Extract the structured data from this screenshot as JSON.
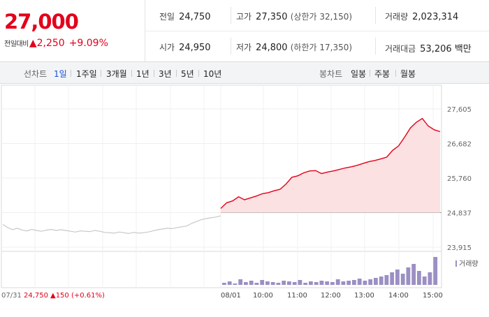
{
  "summary": {
    "price": "27,000",
    "change_label": "전일대비",
    "change_arrow": "▲",
    "change_amount": "2,250",
    "change_percent": "+9.09%",
    "stats": {
      "prev_label": "전일",
      "prev_value": "24,750",
      "high_label": "고가",
      "high_value": "27,350",
      "upper_limit_label": "(상한가 ",
      "upper_limit_value": "32,150",
      "upper_limit_close": ")",
      "volume_label": "거래량",
      "volume_value": "2,023,314",
      "open_label": "시가",
      "open_value": "24,950",
      "low_label": "저가",
      "low_value": "24,800",
      "lower_limit_label": "(하한가 ",
      "lower_limit_value": "17,350",
      "lower_limit_close": ")",
      "amount_label": "거래대금",
      "amount_value": "53,206",
      "amount_unit": "백만"
    }
  },
  "tabs": {
    "line_title": "선차트",
    "line_tabs": [
      "1일",
      "1주일",
      "3개월",
      "1년",
      "3년",
      "5년",
      "10년"
    ],
    "active": "1일",
    "candle_title": "봉차트",
    "candle_tabs": [
      "일봉",
      "주봉",
      "월봉"
    ]
  },
  "colors": {
    "up": "#e3001b",
    "accent": "#1a4fd6",
    "prev_line": "#c8c8c8",
    "volume": "#9b8fc4",
    "fill": "#fbe1e1"
  },
  "chart_data": {
    "type": "line",
    "y_ticks": [
      "27,605",
      "26,682",
      "25,760",
      "24,837",
      "23,915"
    ],
    "ylim": [
      23915,
      27605
    ],
    "x_ticks": [
      "08/01",
      "10:00",
      "11:00",
      "12:00",
      "13:00",
      "14:00",
      "15:00"
    ],
    "prev_day_label": "07/31",
    "prev_day_close": "24,750",
    "prev_day_change": "▲150 (+0.61%)",
    "volume_legend": "거래량",
    "reference_line": 24837,
    "prev_day_series": [
      24520,
      24440,
      24380,
      24420,
      24370,
      24350,
      24390,
      24360,
      24340,
      24370,
      24390,
      24360,
      24380,
      24360,
      24340,
      24320,
      24350,
      24340,
      24330,
      24360,
      24340,
      24310,
      24300,
      24290,
      24320,
      24300,
      24280,
      24310,
      24290,
      24300,
      24320,
      24350,
      24380,
      24400,
      24420,
      24410,
      24440,
      24460,
      24480,
      24550,
      24600,
      24650,
      24680,
      24700,
      24720,
      24750
    ],
    "series": [
      {
        "time": "09:00",
        "price": 24950
      },
      {
        "time": "09:10",
        "price": 25100
      },
      {
        "time": "09:20",
        "price": 25150
      },
      {
        "time": "09:30",
        "price": 25260
      },
      {
        "time": "09:40",
        "price": 25180
      },
      {
        "time": "09:50",
        "price": 25230
      },
      {
        "time": "10:00",
        "price": 25280
      },
      {
        "time": "10:10",
        "price": 25340
      },
      {
        "time": "10:20",
        "price": 25370
      },
      {
        "time": "10:30",
        "price": 25420
      },
      {
        "time": "10:40",
        "price": 25460
      },
      {
        "time": "10:50",
        "price": 25600
      },
      {
        "time": "11:00",
        "price": 25780
      },
      {
        "time": "11:10",
        "price": 25820
      },
      {
        "time": "11:20",
        "price": 25900
      },
      {
        "time": "11:30",
        "price": 25950
      },
      {
        "time": "11:40",
        "price": 25960
      },
      {
        "time": "11:50",
        "price": 25880
      },
      {
        "time": "12:00",
        "price": 25920
      },
      {
        "time": "12:10",
        "price": 25950
      },
      {
        "time": "12:20",
        "price": 25990
      },
      {
        "time": "12:30",
        "price": 26030
      },
      {
        "time": "12:40",
        "price": 26060
      },
      {
        "time": "12:50",
        "price": 26100
      },
      {
        "time": "13:00",
        "price": 26150
      },
      {
        "time": "13:10",
        "price": 26200
      },
      {
        "time": "13:20",
        "price": 26230
      },
      {
        "time": "13:30",
        "price": 26270
      },
      {
        "time": "13:40",
        "price": 26320
      },
      {
        "time": "13:50",
        "price": 26500
      },
      {
        "time": "14:00",
        "price": 26620
      },
      {
        "time": "14:10",
        "price": 26850
      },
      {
        "time": "14:20",
        "price": 27100
      },
      {
        "time": "14:30",
        "price": 27250
      },
      {
        "time": "14:40",
        "price": 27350
      },
      {
        "time": "14:50",
        "price": 27150
      },
      {
        "time": "15:00",
        "price": 27050
      },
      {
        "time": "15:10",
        "price": 27000
      }
    ],
    "volume_series": [
      3,
      5,
      2,
      8,
      4,
      6,
      3,
      7,
      5,
      4,
      3,
      6,
      5,
      4,
      7,
      3,
      5,
      4,
      6,
      5,
      4,
      8,
      5,
      6,
      7,
      9,
      6,
      8,
      10,
      12,
      14,
      18,
      22,
      16,
      25,
      30,
      20,
      12,
      18,
      40
    ]
  }
}
